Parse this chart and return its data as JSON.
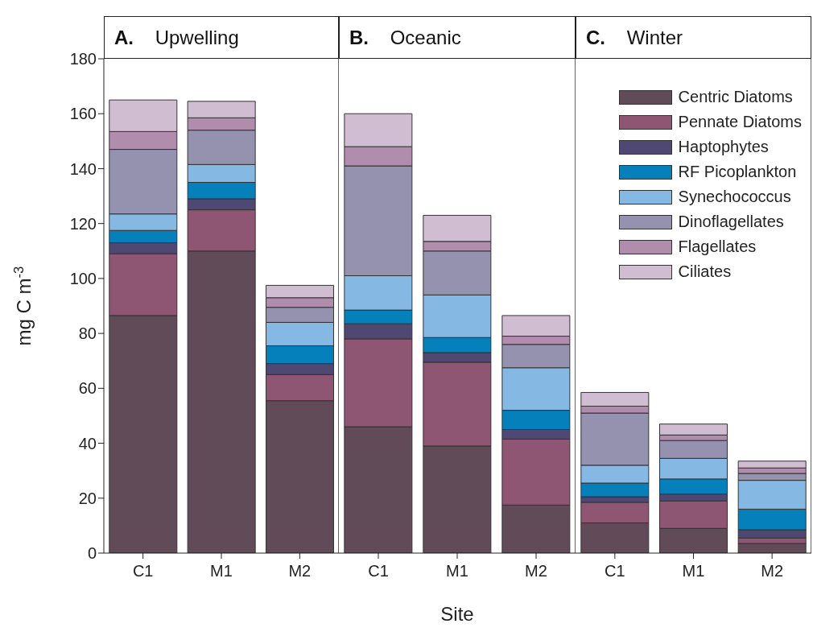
{
  "chart_data": [
    {
      "type": "bar",
      "title": "A.    Upwelling",
      "ylabel": "mg  C m$^{-3}$",
      "categories": [
        "C1",
        "M1",
        "M2"
      ],
      "stacked": true,
      "ylim": [
        0,
        180
      ],
      "yticks": [
        0,
        20,
        40,
        60,
        80,
        100,
        120,
        140,
        160,
        180
      ],
      "grid": false,
      "legend": false,
      "series": [
        {
          "color": "#624b58",
          "values": [
            86.5,
            110,
            55.5
          ]
        },
        {
          "color": "#8e5672",
          "values": [
            22.5,
            15,
            9.5
          ]
        },
        {
          "color": "#4e4873",
          "values": [
            4,
            4,
            4
          ]
        },
        {
          "color": "#0680bb",
          "values": [
            4.5,
            6,
            6.5
          ]
        },
        {
          "color": "#85b8e2",
          "values": [
            6,
            6.5,
            8.5
          ]
        },
        {
          "color": "#9592b0",
          "values": [
            23.5,
            12.5,
            5.5
          ]
        },
        {
          "color": "#b08cad",
          "values": [
            6.5,
            4.5,
            3.5
          ]
        },
        {
          "color": "#d0bdd1",
          "values": [
            11.5,
            6,
            4.5
          ]
        }
      ]
    },
    {
      "type": "bar",
      "title": "B.    Oceanic",
      "xlabel": "Site",
      "categories": [
        "C1",
        "M1",
        "M2"
      ],
      "stacked": true,
      "ylim": [
        0,
        180
      ],
      "yticks": [
        0,
        20,
        40,
        60,
        80,
        100,
        120,
        140,
        160,
        180
      ],
      "tick_labels": "x",
      "grid": false,
      "legend": false,
      "series": [
        {
          "color": "#624b58",
          "values": [
            46,
            39,
            17.5
          ]
        },
        {
          "color": "#8e5672",
          "values": [
            32,
            30.5,
            24
          ]
        },
        {
          "color": "#4e4873",
          "values": [
            5.5,
            3.5,
            3.5
          ]
        },
        {
          "color": "#0680bb",
          "values": [
            5,
            5.5,
            7
          ]
        },
        {
          "color": "#85b8e2",
          "values": [
            12.5,
            15.5,
            15.5
          ]
        },
        {
          "color": "#9592b0",
          "values": [
            40,
            16,
            8.5
          ]
        },
        {
          "color": "#b08cad",
          "values": [
            7,
            3.5,
            3
          ]
        },
        {
          "color": "#d0bdd1",
          "values": [
            12,
            9.5,
            7.5
          ]
        }
      ]
    },
    {
      "type": "bar",
      "title": "C.    Winter",
      "categories": [
        "C1",
        "M1",
        "M2"
      ],
      "stacked": true,
      "ylim": [
        0,
        180
      ],
      "yticks": [
        0,
        20,
        40,
        60,
        80,
        100,
        120,
        140,
        160,
        180
      ],
      "tick_labels": "x",
      "grid": false,
      "legend": "top right",
      "series": [
        {
          "name": "Centric Diatoms",
          "color": "#624b58",
          "values": [
            11,
            9,
            3.5
          ]
        },
        {
          "name": "Pennate Diatoms",
          "color": "#8e5672",
          "values": [
            7.5,
            10,
            2
          ]
        },
        {
          "name": "Haptophytes",
          "color": "#4e4873",
          "values": [
            2,
            2.5,
            3
          ]
        },
        {
          "name": "RF Picoplankton",
          "color": "#0680bb",
          "values": [
            5,
            5.5,
            7.5
          ]
        },
        {
          "name": "Synechococcus",
          "color": "#85b8e2",
          "values": [
            6.5,
            7.5,
            10.5
          ]
        },
        {
          "name": "Dinoflagellates",
          "color": "#9592b0",
          "values": [
            19,
            6.5,
            2.5
          ]
        },
        {
          "name": "Flagellates",
          "color": "#b08cad",
          "values": [
            2.5,
            2,
            2
          ]
        },
        {
          "name": "Ciliates",
          "color": "#d0bdd1",
          "values": [
            5,
            4,
            2.5
          ]
        }
      ]
    }
  ]
}
